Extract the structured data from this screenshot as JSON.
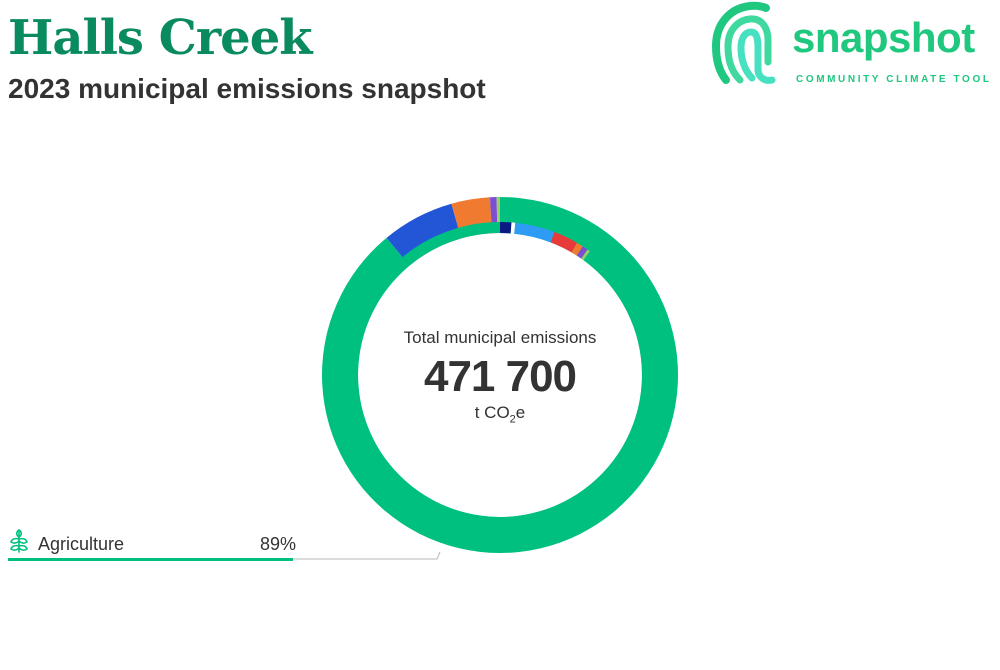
{
  "header": {
    "title": "Halls Creek",
    "subtitle": "2023 municipal emissions snapshot"
  },
  "logo": {
    "wordmark": "snapshot",
    "tagline": "COMMUNITY CLIMATE TOOL",
    "icon": "fingerprint-icon"
  },
  "center": {
    "caption": "Total municipal emissions",
    "value": "471 700",
    "unit_prefix": "t CO",
    "unit_sub": "2",
    "unit_suffix": "e"
  },
  "legend": {
    "items": [
      {
        "name": "Agriculture",
        "percent_label": "89%",
        "icon": "wheat-icon"
      }
    ]
  },
  "colors": {
    "brand": "#20c77f",
    "title": "#0a8a5f",
    "agriculture": "#00c080"
  },
  "chart_data": {
    "type": "pie",
    "title": "Total municipal emissions",
    "total": 471700,
    "unit": "t CO2e",
    "outer_ring": [
      {
        "name": "Agriculture",
        "value": 89,
        "color": "#00c080"
      },
      {
        "value": 6.6,
        "color": "#2356d6"
      },
      {
        "value": 3.5,
        "color": "#f07a30"
      },
      {
        "value": 0.6,
        "color": "#7b4fd0"
      },
      {
        "value": 0.3,
        "color": "#9ad06a"
      }
    ],
    "inner_ring": [
      {
        "value": 1.2,
        "color": "#0b1a80"
      },
      {
        "value": 0.4,
        "color": "#ffffff"
      },
      {
        "value": 4.2,
        "color": "#2e9bf5"
      },
      {
        "value": 2.6,
        "color": "#e83a3a"
      },
      {
        "value": 0.7,
        "color": "#f07a30"
      },
      {
        "value": 0.6,
        "color": "#7b4fd0"
      },
      {
        "value": 0.3,
        "color": "#9ad06a"
      }
    ]
  }
}
